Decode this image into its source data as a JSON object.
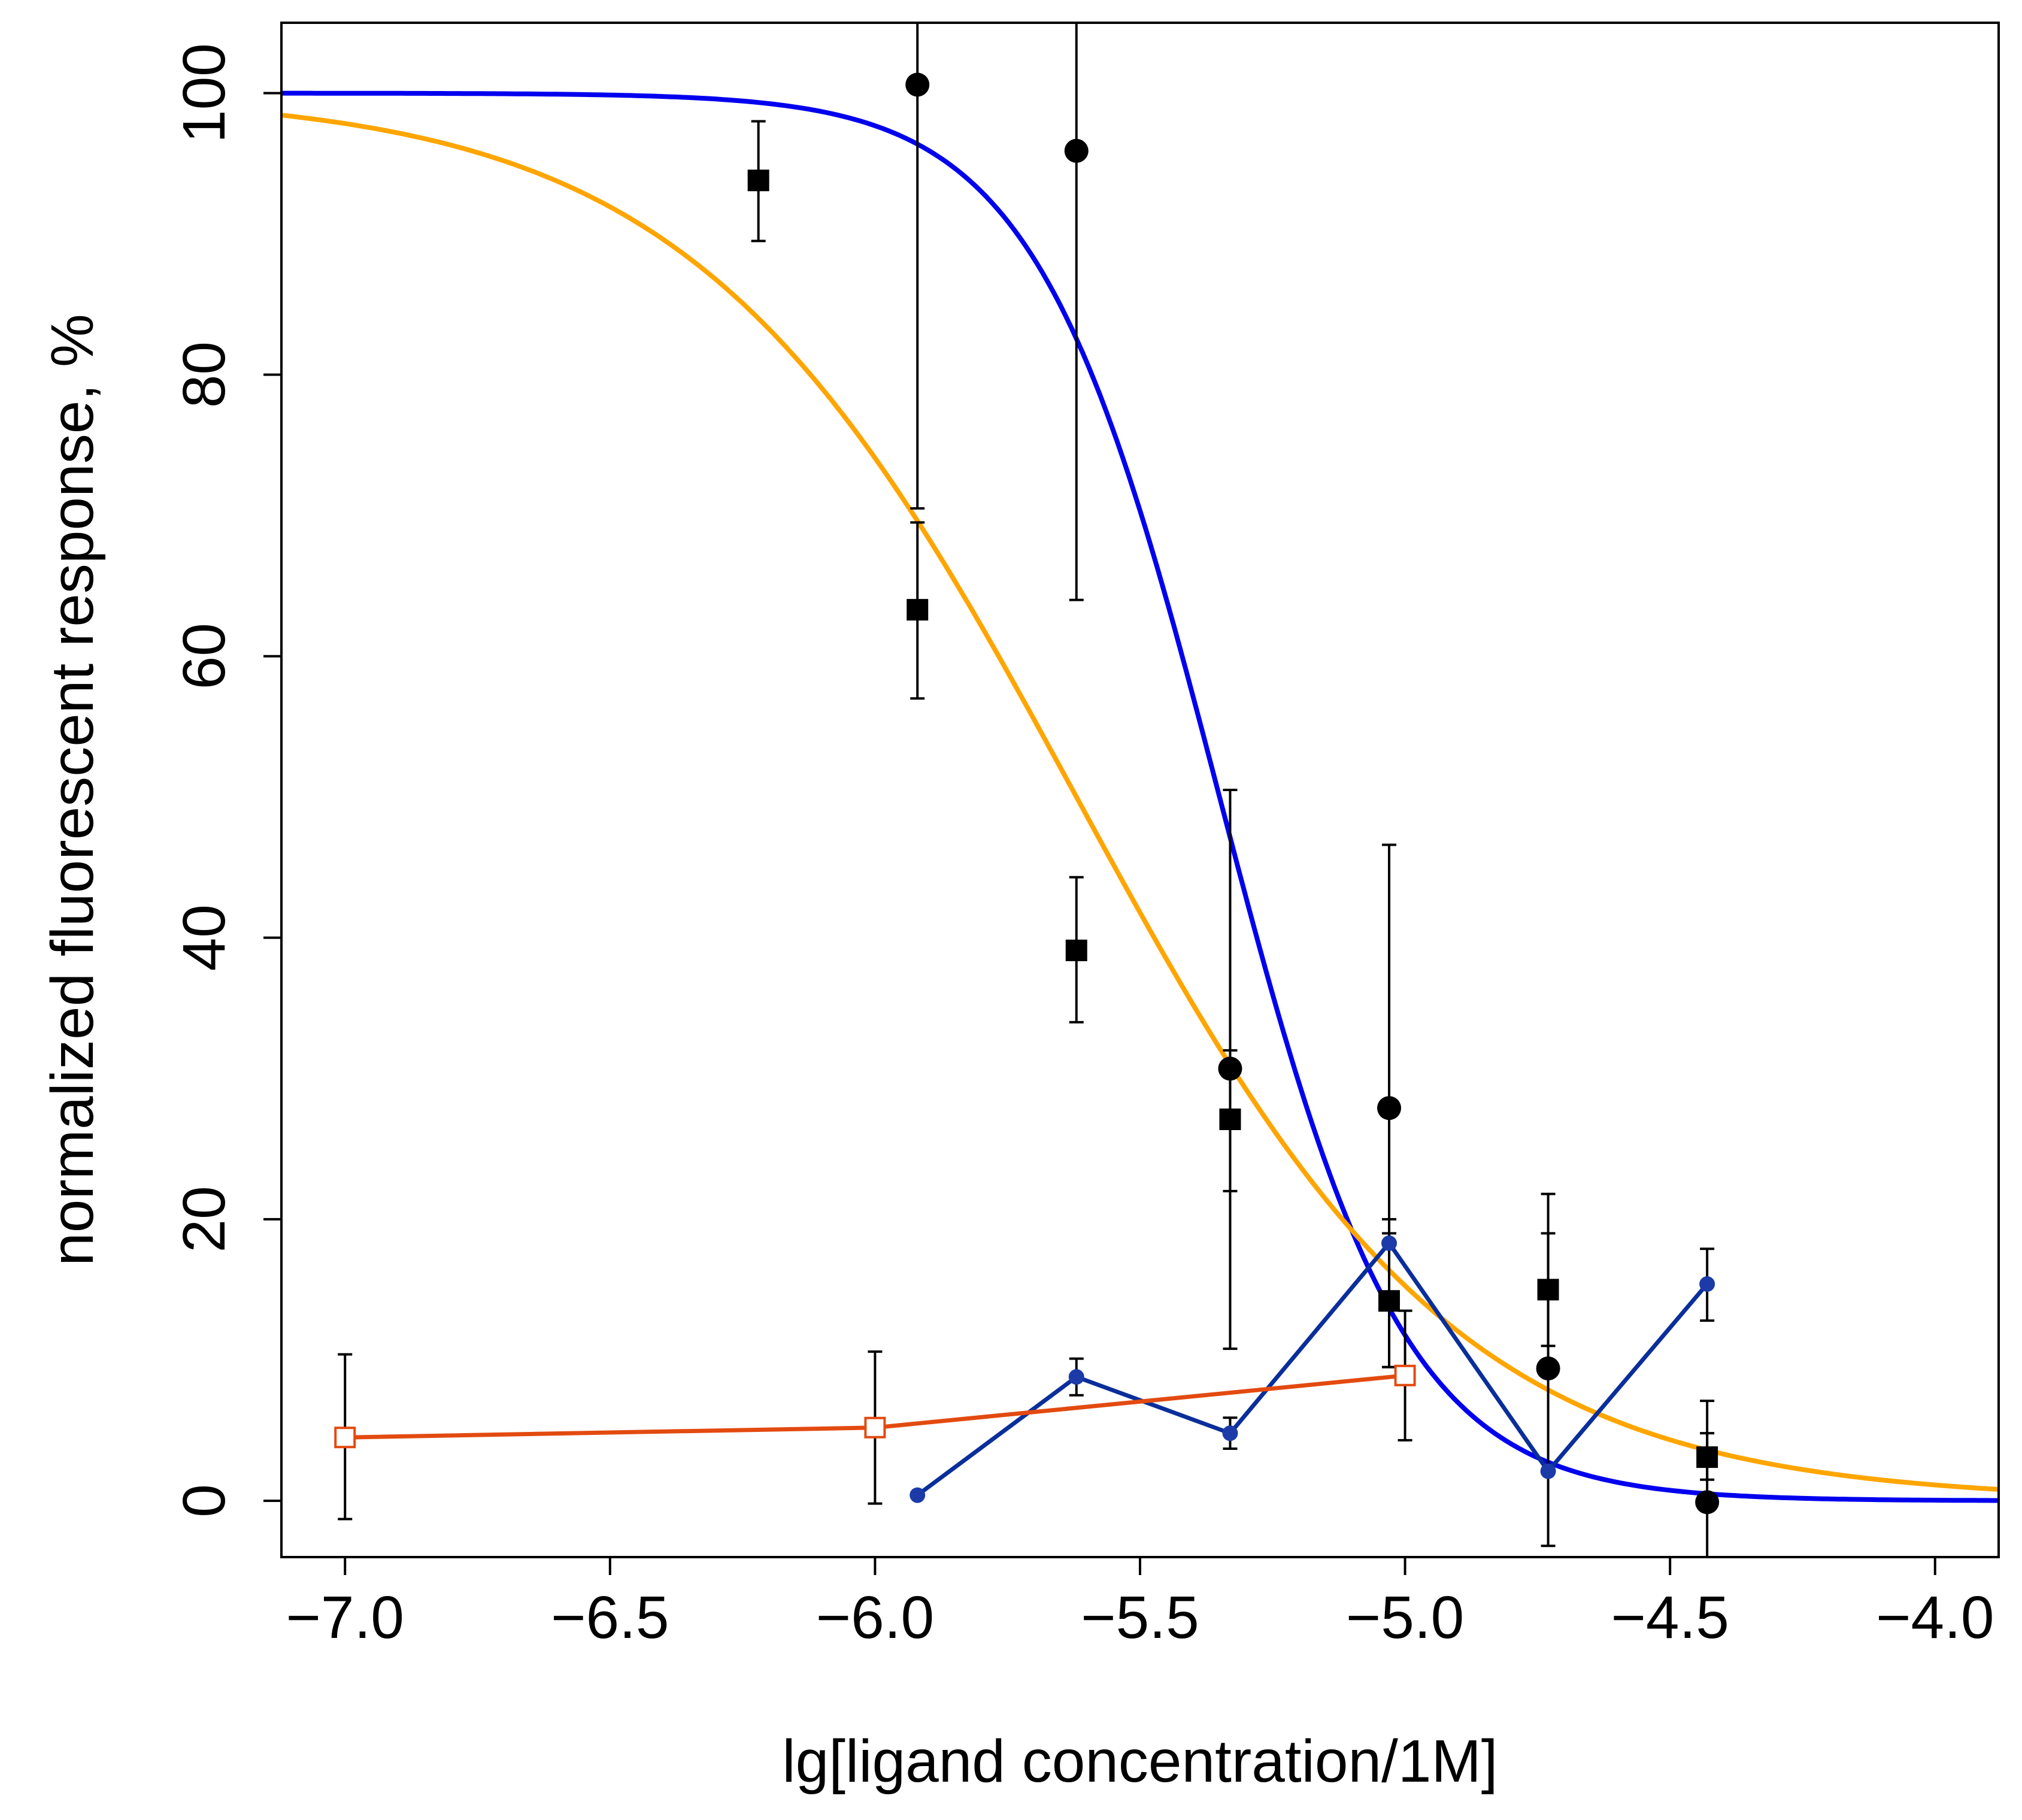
{
  "chart_data": {
    "type": "scatter",
    "title": "",
    "xlabel": "lg[ligand concentration/1M]",
    "ylabel": "normalized fluorescent response, %",
    "xlim": [
      -7.12,
      -3.88
    ],
    "ylim": [
      -4,
      105
    ],
    "xticks": [
      -7.0,
      -6.5,
      -6.0,
      -5.5,
      -5.0,
      -4.5,
      -4.0
    ],
    "xtick_labels": [
      "−7.0",
      "−6.5",
      "−6.0",
      "−5.5",
      "−5.0",
      "−4.5",
      "−4.0"
    ],
    "yticks": [
      0,
      20,
      40,
      60,
      80,
      100
    ],
    "ytick_labels": [
      "0",
      "20",
      "40",
      "60",
      "80",
      "100"
    ],
    "grid": false,
    "series": [
      {
        "name": "fit curve (blue)",
        "kind": "curve",
        "color": "#0000ee",
        "top": 100,
        "bottom": 0,
        "log_ec50": -5.35,
        "hill": 2.5,
        "x_range": [
          -7.12,
          -3.88
        ]
      },
      {
        "name": "fit curve (orange)",
        "kind": "curve",
        "color": "#ffa500",
        "top": 100,
        "bottom": 0,
        "log_ec50": -5.62,
        "hill": 1.2,
        "x_range": [
          -7.12,
          -3.88
        ]
      },
      {
        "name": "filled squares",
        "kind": "points",
        "marker": "square-filled",
        "color": "#000000",
        "x": [
          -6.22,
          -5.92,
          -5.62,
          -5.33,
          -5.03,
          -4.73,
          -4.43
        ],
        "y": [
          93.8,
          63.3,
          39.1,
          27.1,
          14.2,
          15.0,
          3.1
        ],
        "err_low": [
          89.5,
          57.0,
          34.0,
          22.0,
          9.5,
          11.0,
          1.5
        ],
        "err_high": [
          98.0,
          69.5,
          44.3,
          32.0,
          19.0,
          19.0,
          4.8
        ]
      },
      {
        "name": "filled circles",
        "kind": "points",
        "marker": "circle-filled",
        "color": "#000000",
        "x": [
          -5.92,
          -5.62,
          -5.33,
          -5.03,
          -4.73,
          -4.43
        ],
        "y": [
          100.6,
          95.9,
          30.7,
          27.9,
          9.4,
          -0.1
        ],
        "err_low": [
          70.5,
          64.0,
          10.8,
          9.5,
          -3.2,
          -4.0
        ],
        "err_high": [
          105,
          105,
          50.5,
          46.6,
          21.8,
          7.1
        ]
      },
      {
        "name": "blue dots line",
        "kind": "line-points",
        "marker": "circle-small",
        "color": "#0a2e9a",
        "marker_color": "#1c3ba8",
        "x": [
          -5.92,
          -5.62,
          -5.33,
          -5.03,
          -4.73,
          -4.43
        ],
        "y": [
          0.4,
          8.8,
          4.8,
          18.3,
          2.1,
          15.4
        ],
        "err_low": [
          null,
          7.5,
          3.7,
          null,
          null,
          12.8
        ],
        "err_high": [
          null,
          10.1,
          5.9,
          20.0,
          null,
          17.9
        ]
      },
      {
        "name": "open red squares line",
        "kind": "line-points",
        "marker": "square-open",
        "color": "#e34a10",
        "x": [
          -7.0,
          -6.0,
          -5.0
        ],
        "y": [
          4.5,
          5.2,
          8.9
        ],
        "err_low": [
          -1.3,
          -0.2,
          4.3
        ],
        "err_high": [
          10.4,
          10.6,
          13.5
        ]
      }
    ]
  }
}
